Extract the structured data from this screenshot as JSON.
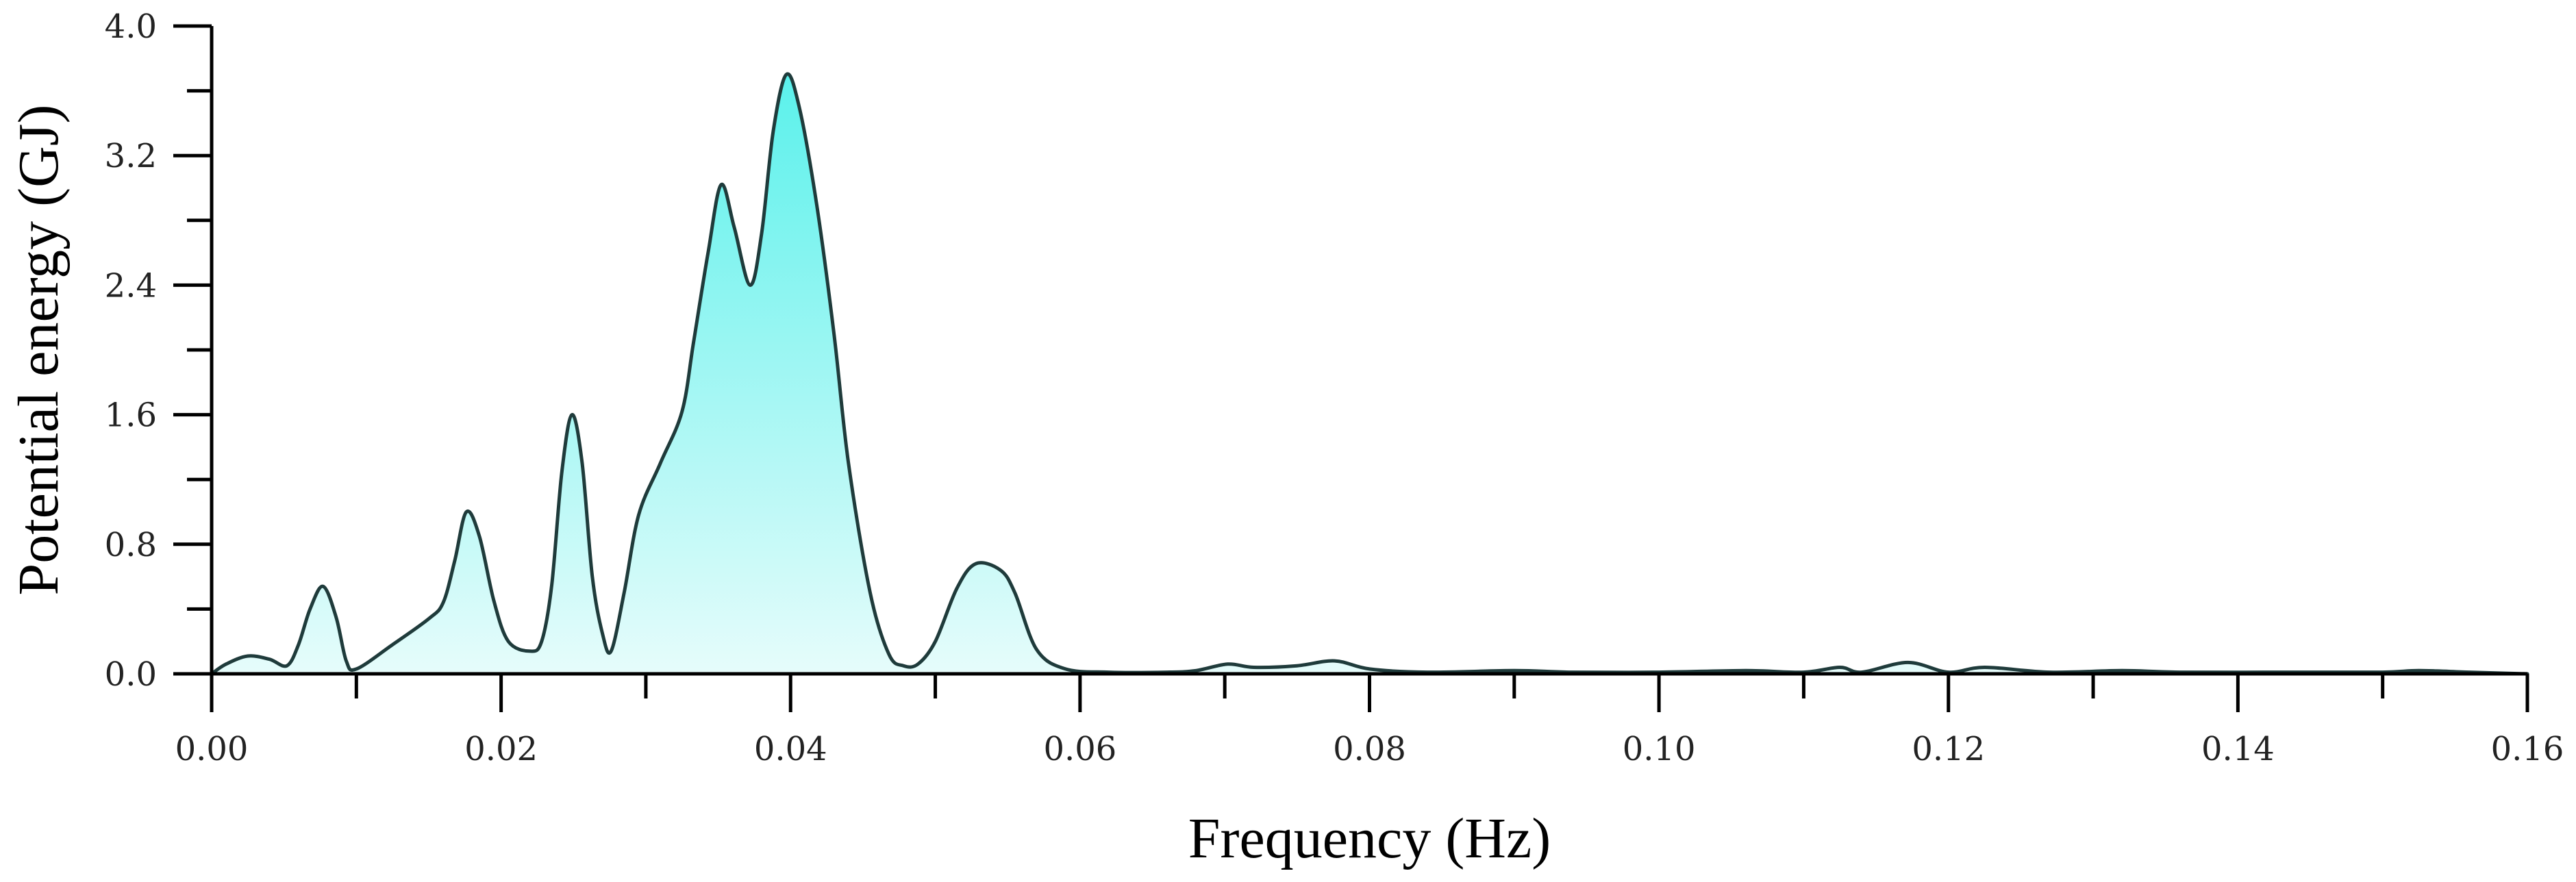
{
  "chart_data": {
    "type": "area",
    "xlabel": "Frequency (Hz)",
    "ylabel": "Potential energy (GJ)",
    "xlim": [
      0,
      0.16
    ],
    "ylim": [
      0,
      4.0
    ],
    "x_ticks": [
      0.0,
      0.02,
      0.04,
      0.06,
      0.08,
      0.1,
      0.12,
      0.14,
      0.16
    ],
    "x_tick_labels": [
      "0.00",
      "0.02",
      "0.04",
      "0.06",
      "0.08",
      "0.10",
      "0.12",
      "0.14",
      "0.16"
    ],
    "y_ticks": [
      0.0,
      0.8,
      1.6,
      2.4,
      3.2,
      4.0
    ],
    "y_tick_labels": [
      "0.0",
      "0.8",
      "1.6",
      "2.4",
      "3.2",
      "4.0"
    ],
    "grid": false,
    "fill_colors": {
      "top": "#4ff0ea",
      "bottom": "#e6fcfb"
    },
    "line_color": "#1f3b3b",
    "series": [
      {
        "x": [
          0.0,
          0.001,
          0.0025,
          0.004,
          0.0052,
          0.006,
          0.0068,
          0.0077,
          0.0086,
          0.0093,
          0.01,
          0.0125,
          0.015,
          0.016,
          0.0168,
          0.0176,
          0.0185,
          0.0195,
          0.0205,
          0.022,
          0.0228,
          0.0235,
          0.0242,
          0.0249,
          0.0256,
          0.0263,
          0.027,
          0.0276,
          0.0285,
          0.0295,
          0.031,
          0.0325,
          0.0333,
          0.0343,
          0.0352,
          0.0361,
          0.0372,
          0.038,
          0.0388,
          0.0397,
          0.0406,
          0.0418,
          0.043,
          0.044,
          0.0455,
          0.0468,
          0.0478,
          0.0488,
          0.05,
          0.0515,
          0.0528,
          0.0545,
          0.0555,
          0.057,
          0.059,
          0.062,
          0.066,
          0.068,
          0.0702,
          0.072,
          0.075,
          0.0776,
          0.08,
          0.084,
          0.09,
          0.094,
          0.1,
          0.106,
          0.11,
          0.1125,
          0.114,
          0.1172,
          0.12,
          0.1225,
          0.127,
          0.132,
          0.136,
          0.144,
          0.15,
          0.1525,
          0.156,
          0.16
        ],
        "y": [
          0.0,
          0.06,
          0.11,
          0.09,
          0.05,
          0.18,
          0.4,
          0.54,
          0.35,
          0.08,
          0.03,
          0.18,
          0.34,
          0.44,
          0.7,
          1.0,
          0.85,
          0.45,
          0.2,
          0.14,
          0.2,
          0.55,
          1.25,
          1.6,
          1.3,
          0.6,
          0.25,
          0.14,
          0.5,
          0.98,
          1.3,
          1.62,
          2.05,
          2.6,
          3.02,
          2.76,
          2.4,
          2.72,
          3.35,
          3.7,
          3.5,
          2.9,
          2.1,
          1.3,
          0.5,
          0.12,
          0.05,
          0.06,
          0.2,
          0.53,
          0.68,
          0.64,
          0.5,
          0.15,
          0.03,
          0.01,
          0.01,
          0.02,
          0.06,
          0.04,
          0.05,
          0.08,
          0.03,
          0.01,
          0.02,
          0.01,
          0.01,
          0.02,
          0.01,
          0.04,
          0.01,
          0.07,
          0.01,
          0.04,
          0.01,
          0.02,
          0.01,
          0.01,
          0.01,
          0.02,
          0.01,
          0.0
        ]
      }
    ]
  }
}
